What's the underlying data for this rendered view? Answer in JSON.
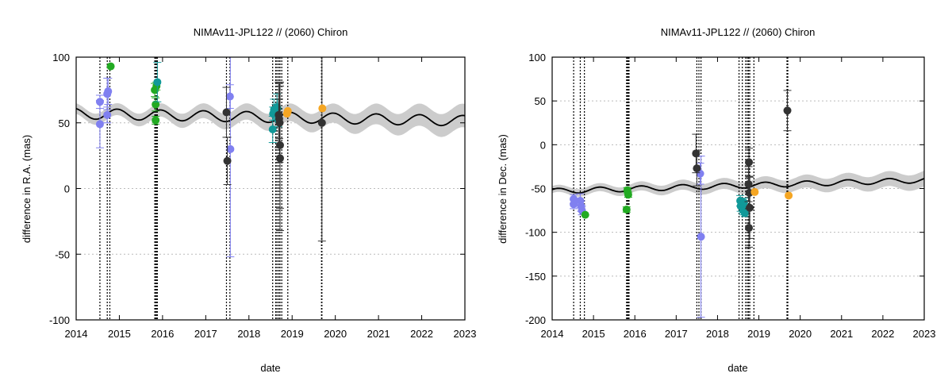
{
  "chart_data": [
    {
      "type": "scatter",
      "title": "NIMAv11-JPL122 // (2060) Chiron",
      "xlabel": "date",
      "ylabel": "difference in R.A. (mas)",
      "xlim": [
        2014,
        2023
      ],
      "ylim": [
        -100,
        100
      ],
      "x_ticks": [
        "2014",
        "2015",
        "2016",
        "2017",
        "2018",
        "2019",
        "2020",
        "2021",
        "2022",
        "2023"
      ],
      "y_ticks": [
        "100",
        "50",
        "0",
        "-50",
        "-100"
      ],
      "y_tick_values": [
        100,
        50,
        0,
        -50,
        -100
      ],
      "grid": "horizontal dotted",
      "legend": "none",
      "colors": {
        "blue": "#8080f0",
        "green": "#22aa22",
        "teal": "#119999",
        "dark": "#333333",
        "orange": "#f5a623",
        "band": "#cccccc",
        "line": "#000000"
      },
      "model_curve": {
        "mean": 57,
        "amplitude": 4,
        "period_years": 1.0,
        "phase": 0.3,
        "trend_per_year": -0.6,
        "band_start": 4,
        "band_end": 9
      },
      "vlines": [
        2014.55,
        2014.72,
        2014.78,
        2015.82,
        2015.84,
        2015.86,
        2015.88,
        2017.48,
        2017.56,
        2018.55,
        2018.62,
        2018.65,
        2018.69,
        2018.72,
        2018.76,
        2018.9,
        2019.68,
        2019.69
      ],
      "series": [
        {
          "color": "blue",
          "points": [
            {
              "x": 2014.55,
              "y": 66,
              "err": 5
            },
            {
              "x": 2014.55,
              "y": 49,
              "err": 18
            },
            {
              "x": 2014.72,
              "y": 72,
              "err": 12
            },
            {
              "x": 2014.72,
              "y": 56,
              "err": 6
            },
            {
              "x": 2014.74,
              "y": 74,
              "err": 10
            },
            {
              "x": 2017.56,
              "y": 70,
              "err": 9
            },
            {
              "x": 2017.57,
              "y": 30,
              "err": 82
            }
          ]
        },
        {
          "color": "green",
          "points": [
            {
              "x": 2014.8,
              "y": 93,
              "err": 0
            },
            {
              "x": 2015.82,
              "y": 75,
              "err": 5
            },
            {
              "x": 2015.84,
              "y": 64,
              "err": 5
            },
            {
              "x": 2015.84,
              "y": 52,
              "err": 3
            },
            {
              "x": 2015.86,
              "y": 78,
              "err": 3
            }
          ]
        },
        {
          "color": "teal",
          "points": [
            {
              "x": 2015.88,
              "y": 81,
              "err": 15
            },
            {
              "x": 2018.55,
              "y": 45,
              "err": 10
            },
            {
              "x": 2018.56,
              "y": 57,
              "err": 5
            },
            {
              "x": 2018.58,
              "y": 60,
              "err": 8
            },
            {
              "x": 2018.62,
              "y": 58,
              "err": 6
            },
            {
              "x": 2018.65,
              "y": 62,
              "err": 10
            },
            {
              "x": 2018.66,
              "y": 61,
              "err": 7
            },
            {
              "x": 2018.68,
              "y": 52,
              "err": 5
            }
          ]
        },
        {
          "color": "dark",
          "points": [
            {
              "x": 2017.48,
              "y": 58,
              "err": 19
            },
            {
              "x": 2017.5,
              "y": 21,
              "err": 18
            },
            {
              "x": 2018.69,
              "y": 56,
              "err": 25
            },
            {
              "x": 2018.7,
              "y": 53,
              "err": 15
            },
            {
              "x": 2018.71,
              "y": 50,
              "err": 30
            },
            {
              "x": 2018.72,
              "y": 33,
              "err": 48
            },
            {
              "x": 2018.72,
              "y": 23,
              "err": 55
            },
            {
              "x": 2019.69,
              "y": 50,
              "err": 90
            }
          ]
        },
        {
          "color": "orange",
          "points": [
            {
              "x": 2018.88,
              "y": 57,
              "err": 0
            },
            {
              "x": 2018.9,
              "y": 59,
              "err": 0
            },
            {
              "x": 2019.7,
              "y": 61,
              "err": 0
            }
          ]
        }
      ]
    },
    {
      "type": "scatter",
      "title": "NIMAv11-JPL122 // (2060) Chiron",
      "xlabel": "date",
      "ylabel": "difference in Dec. (mas)",
      "xlim": [
        2014,
        2023
      ],
      "ylim": [
        -200,
        100
      ],
      "x_ticks": [
        "2014",
        "2015",
        "2016",
        "2017",
        "2018",
        "2019",
        "2020",
        "2021",
        "2022",
        "2023"
      ],
      "y_ticks": [
        "100",
        "50",
        "0",
        "-50",
        "-100",
        "-150",
        "-200"
      ],
      "y_tick_values": [
        100,
        50,
        0,
        -50,
        -100,
        -150,
        -200
      ],
      "grid": "horizontal dotted",
      "legend": "none",
      "colors": {
        "blue": "#8080f0",
        "green": "#22aa22",
        "teal": "#119999",
        "dark": "#333333",
        "orange": "#f5a623",
        "band": "#cccccc",
        "line": "#000000"
      },
      "model_curve": {
        "mean": -53,
        "amplitude": 3,
        "period_years": 1.0,
        "phase": 0.1,
        "trend_per_year": 1.4,
        "band_start": 4,
        "band_end": 9
      },
      "vlines": [
        2014.52,
        2014.68,
        2014.78,
        2015.8,
        2015.82,
        2015.84,
        2015.86,
        2017.5,
        2017.55,
        2017.6,
        2018.52,
        2018.6,
        2018.68,
        2018.72,
        2018.75,
        2018.78,
        2018.88,
        2019.68,
        2019.7
      ],
      "series": [
        {
          "color": "blue",
          "points": [
            {
              "x": 2014.52,
              "y": -62,
              "err": 5
            },
            {
              "x": 2014.52,
              "y": -68,
              "err": 5
            },
            {
              "x": 2014.68,
              "y": -64,
              "err": 8
            },
            {
              "x": 2014.7,
              "y": -70,
              "err": 6
            },
            {
              "x": 2014.72,
              "y": -75,
              "err": 5
            },
            {
              "x": 2017.58,
              "y": -33,
              "err": 12
            },
            {
              "x": 2017.6,
              "y": -105,
              "err": 92
            }
          ]
        },
        {
          "color": "green",
          "points": [
            {
              "x": 2014.8,
              "y": -80,
              "err": 0
            },
            {
              "x": 2015.8,
              "y": -74,
              "err": 3
            },
            {
              "x": 2015.82,
              "y": -52,
              "err": 3
            },
            {
              "x": 2015.84,
              "y": -57,
              "err": 3
            }
          ]
        },
        {
          "color": "teal",
          "points": [
            {
              "x": 2018.55,
              "y": -64,
              "err": 6
            },
            {
              "x": 2018.56,
              "y": -70,
              "err": 6
            },
            {
              "x": 2018.58,
              "y": -68,
              "err": 5
            },
            {
              "x": 2018.6,
              "y": -72,
              "err": 6
            },
            {
              "x": 2018.62,
              "y": -75,
              "err": 5
            },
            {
              "x": 2018.64,
              "y": -66,
              "err": 5
            },
            {
              "x": 2018.66,
              "y": -78,
              "err": 4
            }
          ]
        },
        {
          "color": "dark",
          "points": [
            {
              "x": 2017.48,
              "y": -10,
              "err": 22
            },
            {
              "x": 2017.5,
              "y": -27,
              "err": 20
            },
            {
              "x": 2018.76,
              "y": -20,
              "err": 16
            },
            {
              "x": 2018.75,
              "y": -45,
              "err": 20
            },
            {
              "x": 2018.77,
              "y": -55,
              "err": 18
            },
            {
              "x": 2018.78,
              "y": -72,
              "err": 35
            },
            {
              "x": 2018.76,
              "y": -95,
              "err": 22
            },
            {
              "x": 2019.69,
              "y": 39,
              "err": 23
            }
          ]
        },
        {
          "color": "orange",
          "points": [
            {
              "x": 2018.9,
              "y": -54,
              "err": 0
            },
            {
              "x": 2019.72,
              "y": -58,
              "err": 0
            }
          ]
        }
      ]
    }
  ]
}
